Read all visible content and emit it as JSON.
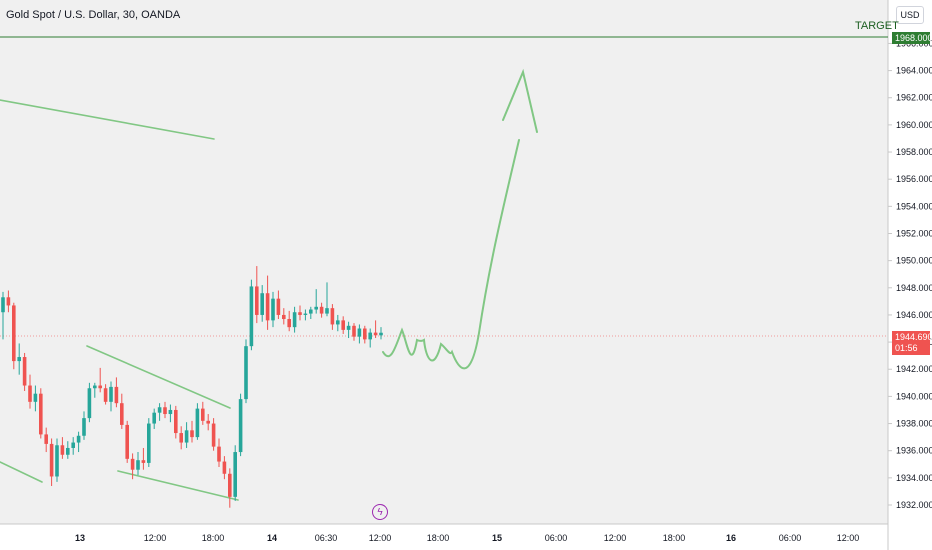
{
  "header": {
    "title": "Gold Spot / U.S. Dollar, 30, OANDA",
    "currency": "USD"
  },
  "annotations": {
    "target_label": "TARGET",
    "target_price": "1968.000"
  },
  "current_price": {
    "price": "1944.690",
    "countdown": "01:56"
  },
  "icons": {
    "event_icon": "flash-icon"
  },
  "colors": {
    "up": "#26a69a",
    "down": "#ef5350",
    "drawing": "#81c784",
    "target_line": "#2e7d32",
    "price_line": "#ef9a9a"
  },
  "chart_data": {
    "type": "candlestick",
    "ylim": [
      1930.6,
      1969.2
    ],
    "y_ticks": [
      "1932.000",
      "1934.000",
      "1936.000",
      "1938.000",
      "1940.000",
      "1942.000",
      "1944.000",
      "1946.000",
      "1948.000",
      "1950.000",
      "1952.000",
      "1954.000",
      "1956.000",
      "1958.000",
      "1960.000",
      "1962.000",
      "1964.000",
      "1966.000"
    ],
    "x_ticks": [
      "13",
      "12:00",
      "18:00",
      "14",
      "06:30",
      "12:00",
      "18:00",
      "15",
      "06:00",
      "12:00",
      "18:00",
      "16",
      "06:00",
      "12:00"
    ],
    "candles": [
      [
        1946.2,
        1947.7,
        1944.2,
        1947.3
      ],
      [
        1947.3,
        1947.8,
        1946.2,
        1946.7
      ],
      [
        1946.7,
        1946.9,
        1942.0,
        1942.6
      ],
      [
        1942.6,
        1943.9,
        1941.6,
        1942.9
      ],
      [
        1942.9,
        1943.2,
        1940.4,
        1940.8
      ],
      [
        1940.8,
        1941.6,
        1939.1,
        1939.6
      ],
      [
        1939.6,
        1940.8,
        1938.9,
        1940.2
      ],
      [
        1940.2,
        1940.6,
        1936.9,
        1937.2
      ],
      [
        1937.2,
        1937.7,
        1935.9,
        1936.5
      ],
      [
        1936.5,
        1936.9,
        1933.4,
        1934.1
      ],
      [
        1934.1,
        1936.9,
        1933.7,
        1936.4
      ],
      [
        1936.4,
        1937.0,
        1935.4,
        1935.7
      ],
      [
        1935.7,
        1936.7,
        1935.4,
        1936.2
      ],
      [
        1936.2,
        1937.0,
        1935.7,
        1936.6
      ],
      [
        1936.6,
        1937.4,
        1935.9,
        1937.1
      ],
      [
        1937.1,
        1938.9,
        1936.8,
        1938.4
      ],
      [
        1938.4,
        1941.0,
        1938.1,
        1940.6
      ],
      [
        1940.6,
        1941.0,
        1939.9,
        1940.8
      ],
      [
        1940.8,
        1942.1,
        1940.3,
        1940.6
      ],
      [
        1940.6,
        1940.9,
        1939.4,
        1939.6
      ],
      [
        1939.6,
        1941.1,
        1938.9,
        1940.7
      ],
      [
        1940.7,
        1941.4,
        1939.2,
        1939.5
      ],
      [
        1939.5,
        1940.2,
        1937.6,
        1937.9
      ],
      [
        1937.9,
        1938.2,
        1935.1,
        1935.4
      ],
      [
        1935.4,
        1935.8,
        1933.9,
        1934.6
      ],
      [
        1934.6,
        1935.9,
        1934.2,
        1935.3
      ],
      [
        1935.3,
        1936.2,
        1934.6,
        1935.1
      ],
      [
        1935.1,
        1938.4,
        1934.8,
        1938.0
      ],
      [
        1938.0,
        1939.1,
        1937.6,
        1938.8
      ],
      [
        1938.8,
        1939.5,
        1938.2,
        1939.2
      ],
      [
        1939.2,
        1939.6,
        1938.4,
        1938.7
      ],
      [
        1938.7,
        1939.4,
        1938.1,
        1939.0
      ],
      [
        1939.0,
        1939.3,
        1936.9,
        1937.3
      ],
      [
        1937.3,
        1937.8,
        1936.1,
        1936.6
      ],
      [
        1936.6,
        1938.1,
        1936.2,
        1937.5
      ],
      [
        1937.5,
        1938.2,
        1936.6,
        1937.0
      ],
      [
        1937.0,
        1939.5,
        1936.8,
        1939.1
      ],
      [
        1939.1,
        1939.6,
        1937.9,
        1938.2
      ],
      [
        1938.2,
        1938.7,
        1937.5,
        1938.0
      ],
      [
        1938.0,
        1938.4,
        1936.0,
        1936.3
      ],
      [
        1936.3,
        1936.9,
        1934.8,
        1935.2
      ],
      [
        1935.2,
        1935.6,
        1933.9,
        1934.3
      ],
      [
        1934.3,
        1934.7,
        1931.8,
        1932.6
      ],
      [
        1932.6,
        1936.4,
        1932.3,
        1935.9
      ],
      [
        1935.9,
        1940.2,
        1935.6,
        1939.8
      ],
      [
        1939.8,
        1944.2,
        1939.5,
        1943.7
      ],
      [
        1943.7,
        1948.6,
        1943.4,
        1948.1
      ],
      [
        1948.1,
        1949.6,
        1945.4,
        1946.0
      ],
      [
        1946.0,
        1948.2,
        1945.5,
        1947.6
      ],
      [
        1947.6,
        1948.9,
        1944.9,
        1945.6
      ],
      [
        1945.6,
        1947.7,
        1945.1,
        1947.2
      ],
      [
        1947.2,
        1947.8,
        1945.7,
        1946.0
      ],
      [
        1946.0,
        1946.5,
        1945.3,
        1945.7
      ],
      [
        1945.7,
        1946.3,
        1944.8,
        1945.1
      ],
      [
        1945.1,
        1946.6,
        1944.7,
        1946.2
      ],
      [
        1946.2,
        1946.7,
        1945.6,
        1946.0
      ],
      [
        1946.0,
        1946.4,
        1945.6,
        1946.1
      ],
      [
        1946.1,
        1946.6,
        1945.7,
        1946.4
      ],
      [
        1946.4,
        1947.9,
        1946.1,
        1946.6
      ],
      [
        1946.6,
        1946.9,
        1945.8,
        1946.1
      ],
      [
        1946.1,
        1948.4,
        1945.9,
        1946.5
      ],
      [
        1946.5,
        1946.8,
        1944.9,
        1945.3
      ],
      [
        1945.3,
        1946.0,
        1944.8,
        1945.6
      ],
      [
        1945.6,
        1945.9,
        1944.6,
        1944.9
      ],
      [
        1944.9,
        1945.5,
        1944.3,
        1945.2
      ],
      [
        1945.2,
        1945.4,
        1944.1,
        1944.4
      ],
      [
        1944.4,
        1945.3,
        1943.9,
        1945.0
      ],
      [
        1945.0,
        1945.2,
        1943.9,
        1944.2
      ],
      [
        1944.2,
        1945.0,
        1943.6,
        1944.7
      ],
      [
        1944.7,
        1945.6,
        1944.3,
        1944.5
      ],
      [
        1944.5,
        1945.1,
        1944.2,
        1944.69
      ]
    ]
  }
}
